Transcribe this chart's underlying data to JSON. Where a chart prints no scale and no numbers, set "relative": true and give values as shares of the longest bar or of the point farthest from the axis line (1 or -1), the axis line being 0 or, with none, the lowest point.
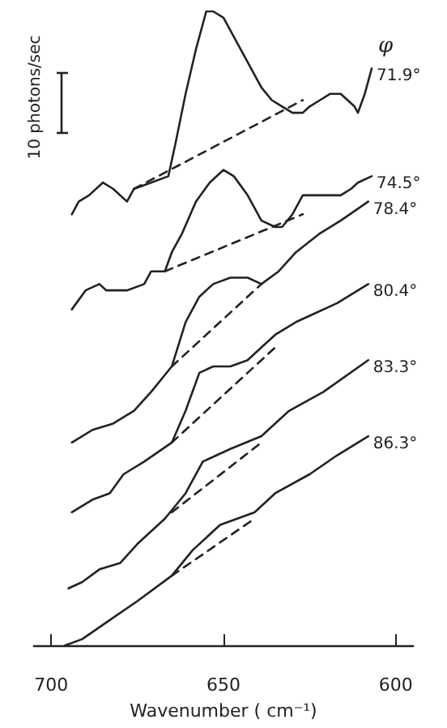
{
  "chart_data": {
    "type": "line",
    "relative": true,
    "xlabel": "Wavenumber ( cm⁻¹)",
    "legend_title": "φ",
    "annotations": [
      "10 photons/sec"
    ],
    "xlim": [
      705,
      595
    ],
    "xticks": [
      700,
      650,
      600
    ],
    "legend": false,
    "marker": "none",
    "line_style": "solid",
    "series": [
      {
        "name": "71.9°",
        "color": "#222222",
        "x": [
          694,
          692,
          689,
          685,
          682,
          678,
          676,
          671,
          666,
          664,
          661,
          658,
          655,
          653,
          650,
          647,
          643,
          639,
          636,
          633,
          630,
          627,
          625,
          622,
          619,
          616,
          614,
          612,
          611,
          609,
          607
        ],
        "values": [
          0.68,
          0.7,
          0.71,
          0.73,
          0.72,
          0.7,
          0.72,
          0.73,
          0.74,
          0.79,
          0.87,
          0.94,
          1.0,
          1.0,
          0.99,
          0.96,
          0.92,
          0.88,
          0.86,
          0.85,
          0.84,
          0.84,
          0.85,
          0.86,
          0.87,
          0.87,
          0.86,
          0.85,
          0.84,
          0.87,
          0.91
        ]
      },
      {
        "color": "#222222",
        "line_style": "dashed",
        "x": [
          676,
          627
        ],
        "values": [
          0.72,
          0.86
        ]
      },
      {
        "name": "74.5°",
        "color": "#222222",
        "x": [
          694,
          690,
          686,
          684,
          681,
          678,
          673,
          671,
          667,
          665,
          662,
          658,
          654,
          650,
          647,
          643,
          639,
          635,
          633,
          630,
          627,
          625,
          622,
          619,
          616,
          613,
          611,
          607
        ],
        "values": [
          0.53,
          0.56,
          0.57,
          0.56,
          0.56,
          0.56,
          0.57,
          0.59,
          0.59,
          0.62,
          0.65,
          0.7,
          0.73,
          0.75,
          0.74,
          0.71,
          0.67,
          0.66,
          0.66,
          0.68,
          0.71,
          0.71,
          0.71,
          0.71,
          0.71,
          0.72,
          0.73,
          0.74
        ]
      },
      {
        "color": "#222222",
        "line_style": "dashed",
        "x": [
          667,
          627
        ],
        "values": [
          0.59,
          0.68
        ]
      },
      {
        "name": "78.4°",
        "color": "#222222",
        "x": [
          694,
          688,
          682,
          676,
          671,
          665,
          661,
          657,
          653,
          648,
          643,
          639,
          634,
          629,
          622,
          616,
          608
        ],
        "values": [
          0.32,
          0.34,
          0.35,
          0.37,
          0.4,
          0.44,
          0.51,
          0.55,
          0.57,
          0.58,
          0.58,
          0.57,
          0.59,
          0.62,
          0.65,
          0.67,
          0.7
        ]
      },
      {
        "color": "#222222",
        "line_style": "dashed",
        "x": [
          665,
          639
        ],
        "values": [
          0.44,
          0.57
        ]
      },
      {
        "name": "80.4°",
        "color": "#222222",
        "x": [
          694,
          688,
          683,
          679,
          673,
          665,
          661,
          657,
          653,
          648,
          643,
          639,
          635,
          629,
          625,
          617,
          608
        ],
        "values": [
          0.21,
          0.23,
          0.24,
          0.27,
          0.29,
          0.32,
          0.37,
          0.43,
          0.44,
          0.44,
          0.45,
          0.47,
          0.49,
          0.51,
          0.52,
          0.54,
          0.57
        ]
      },
      {
        "color": "#222222",
        "line_style": "dashed",
        "x": [
          665,
          635
        ],
        "values": [
          0.32,
          0.47
        ]
      },
      {
        "name": "83.3°",
        "color": "#222222",
        "x": [
          695,
          691,
          686,
          680,
          675,
          667,
          661,
          656,
          648,
          639,
          631,
          621,
          608
        ],
        "values": [
          0.09,
          0.1,
          0.12,
          0.13,
          0.16,
          0.2,
          0.24,
          0.29,
          0.31,
          0.33,
          0.37,
          0.4,
          0.45
        ]
      },
      {
        "color": "#222222",
        "line_style": "dashed",
        "x": [
          665,
          639
        ],
        "values": [
          0.21,
          0.32
        ]
      },
      {
        "name": "86.3°",
        "color": "#222222",
        "x": [
          696,
          691,
          683,
          675,
          665,
          659,
          651,
          641,
          635,
          625,
          617,
          608
        ],
        "values": [
          0.0,
          0.01,
          0.04,
          0.07,
          0.11,
          0.15,
          0.19,
          0.21,
          0.24,
          0.27,
          0.3,
          0.33
        ]
      },
      {
        "color": "#222222",
        "line_style": "dashed",
        "x": [
          665,
          641
        ],
        "values": [
          0.11,
          0.2
        ]
      }
    ]
  }
}
